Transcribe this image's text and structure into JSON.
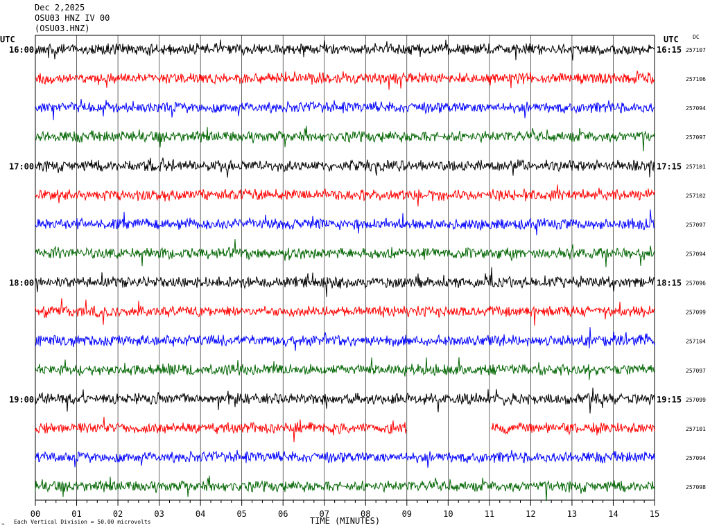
{
  "header": {
    "date": "Dec 2,2025",
    "station_line": "OSU03 HNZ IV 00",
    "station_code": "(OSU03.HNZ)"
  },
  "left_axis_title": "UTC",
  "right_axis_title": "UTC",
  "dc_title": "DC",
  "footer": {
    "scale_note": "Each Vertical Division =    50.00 microvolts"
  },
  "chart_data": {
    "type": "line",
    "title": "",
    "xlabel": "TIME (MINUTES)",
    "x_ticks": [
      "00",
      "01",
      "02",
      "03",
      "04",
      "05",
      "06",
      "07",
      "08",
      "09",
      "10",
      "11",
      "12",
      "13",
      "14",
      "15"
    ],
    "xlim": [
      0,
      15
    ],
    "grid": "vertical lines every 1 minute",
    "series_colors": [
      "#000000",
      "#ff0000",
      "#0000ff",
      "#006400"
    ],
    "hour_labels_left": [
      "16:00",
      "17:00",
      "18:00",
      "19:00"
    ],
    "hour_labels_right": [
      "16:15",
      "17:15",
      "18:15",
      "19:15"
    ],
    "hour_label_rows": [
      0,
      4,
      8,
      12
    ],
    "traces": [
      {
        "row": 0,
        "dc": "257107"
      },
      {
        "row": 1,
        "dc": "257106"
      },
      {
        "row": 2,
        "dc": "257094"
      },
      {
        "row": 3,
        "dc": "257097"
      },
      {
        "row": 4,
        "dc": "257101"
      },
      {
        "row": 5,
        "dc": "257102"
      },
      {
        "row": 6,
        "dc": "257097"
      },
      {
        "row": 7,
        "dc": "257094"
      },
      {
        "row": 8,
        "dc": "257096"
      },
      {
        "row": 9,
        "dc": "257099"
      },
      {
        "row": 10,
        "dc": "257104"
      },
      {
        "row": 11,
        "dc": "257097"
      },
      {
        "row": 12,
        "dc": "257099"
      },
      {
        "row": 13,
        "dc": "257101",
        "gap_minutes": [
          9.0,
          11.05
        ]
      },
      {
        "row": 14,
        "dc": "257094"
      },
      {
        "row": 15,
        "dc": "257098"
      }
    ]
  }
}
